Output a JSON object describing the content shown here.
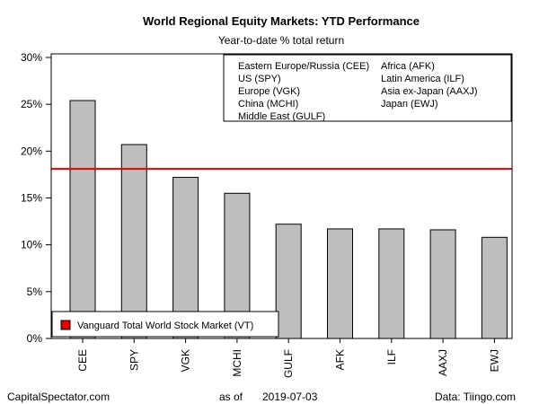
{
  "chart_data": {
    "type": "bar",
    "title": "World Regional Equity Markets: YTD Performance",
    "subtitle": "Year-to-date % total return",
    "categories": [
      "CEE",
      "SPY",
      "VGK",
      "MCHI",
      "GULF",
      "AFK",
      "ILF",
      "AAXJ",
      "EWJ"
    ],
    "values": [
      25.4,
      20.7,
      17.2,
      15.5,
      12.2,
      11.7,
      11.7,
      11.6,
      10.8
    ],
    "ylim": [
      0,
      30
    ],
    "yticks": [
      0,
      5,
      10,
      15,
      20,
      25,
      30
    ],
    "ytick_labels": [
      "0%",
      "5%",
      "10%",
      "15%",
      "20%",
      "25%",
      "30%"
    ],
    "bar_color": "#bebebe",
    "reference_line": {
      "value": 18.1,
      "color": "#e00000",
      "label": "Vanguard Total World Stock Market (VT)"
    },
    "legend_entries": [
      "Eastern Europe/Russia (CEE)",
      "US (SPY)",
      "Europe (VGK)",
      "China (MCHI)",
      "Middle East (GULF)",
      "Africa (AFK)",
      "Latin America (ILF)",
      "Asia ex-Japan (AAXJ)",
      "Japan (EWJ)"
    ],
    "legend_placement": "top-right",
    "grid": false
  },
  "footer": {
    "left": "CapitalSpectator.com",
    "as_of_label": "as of",
    "date": "2019-07-03",
    "right": "Data: Tiingo.com"
  }
}
